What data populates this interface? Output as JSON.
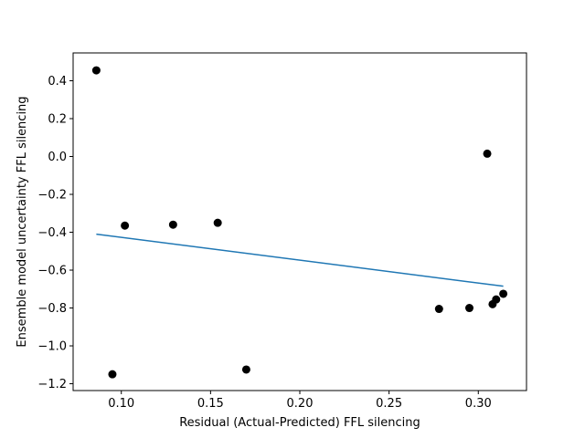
{
  "chart_data": {
    "type": "scatter",
    "title": "",
    "xlabel": "Residual (Actual-Predicted) FFL silencing",
    "ylabel": "Ensemble model uncertainty FFL silencing",
    "xlim": [
      0.073,
      0.327
    ],
    "ylim": [
      -1.236,
      0.547
    ],
    "xticks": [
      0.1,
      0.15,
      0.2,
      0.25,
      0.3
    ],
    "xtick_labels": [
      "0.10",
      "0.15",
      "0.20",
      "0.25",
      "0.30"
    ],
    "yticks": [
      0.4,
      0.2,
      0.0,
      -0.2,
      -0.4,
      -0.6,
      -0.8,
      -1.0,
      -1.2
    ],
    "ytick_labels": [
      "0.4",
      "0.2",
      "0.0",
      "−0.2",
      "−0.4",
      "−0.6",
      "−0.8",
      "−1.0",
      "−1.2"
    ],
    "grid": false,
    "series": [
      {
        "kind": "points",
        "color": "#000000",
        "points": [
          {
            "x": 0.086,
            "y": 0.455
          },
          {
            "x": 0.095,
            "y": -1.15
          },
          {
            "x": 0.102,
            "y": -0.365
          },
          {
            "x": 0.129,
            "y": -0.36
          },
          {
            "x": 0.154,
            "y": -0.35
          },
          {
            "x": 0.17,
            "y": -1.125
          },
          {
            "x": 0.278,
            "y": -0.805
          },
          {
            "x": 0.295,
            "y": -0.8
          },
          {
            "x": 0.305,
            "y": 0.015
          },
          {
            "x": 0.308,
            "y": -0.78
          },
          {
            "x": 0.31,
            "y": -0.755
          },
          {
            "x": 0.314,
            "y": -0.725
          }
        ]
      },
      {
        "kind": "fit-line",
        "color": "#1f77b4",
        "points": [
          {
            "x": 0.086,
            "y": -0.41
          },
          {
            "x": 0.314,
            "y": -0.685
          }
        ]
      }
    ]
  }
}
